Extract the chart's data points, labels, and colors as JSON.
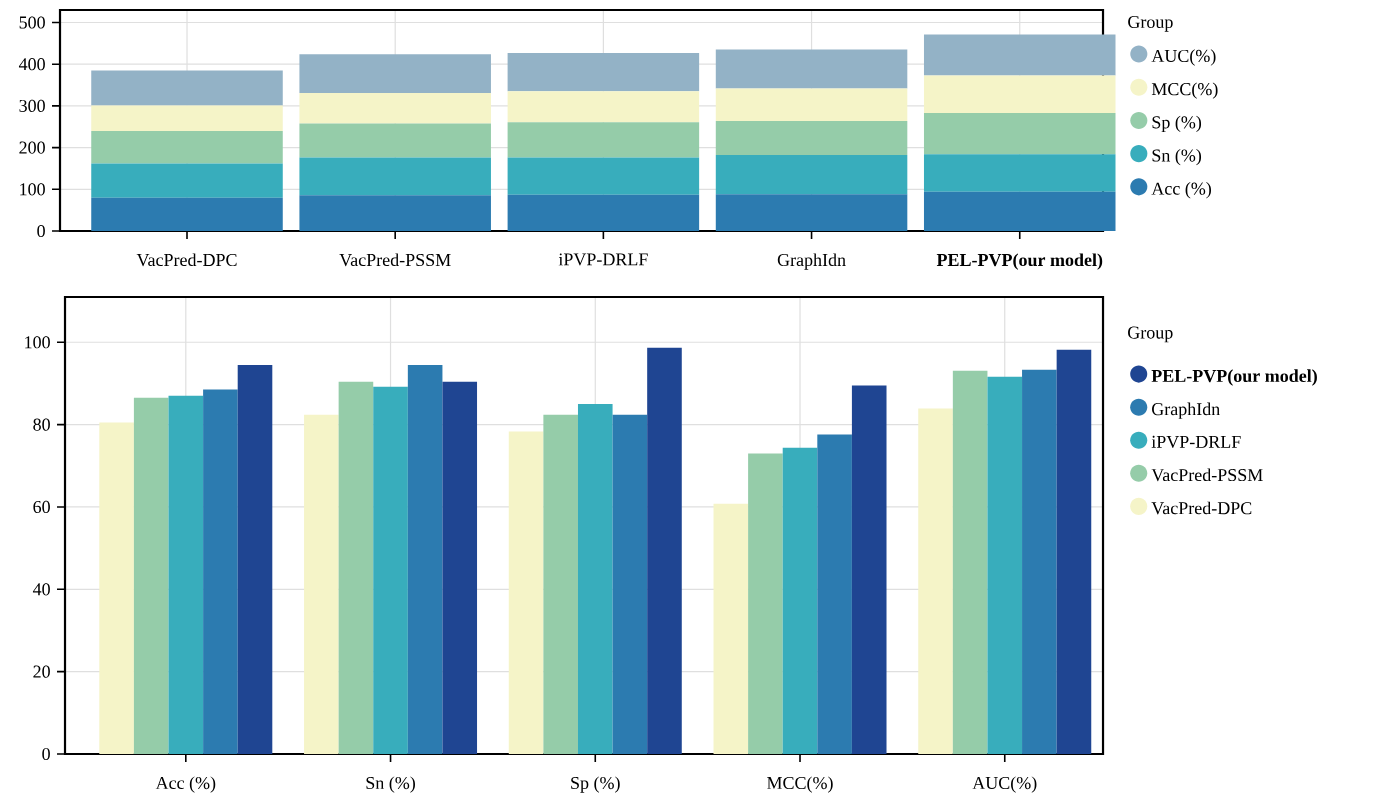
{
  "chart_data": [
    {
      "type": "bar",
      "stacked": true,
      "categories": [
        "VacPred-DPC",
        "VacPred-PSSM",
        "iPVP-DRLF",
        "GraphIdn",
        "**PEL-PVP(our model)**"
      ],
      "series": [
        {
          "name": "Acc (%)",
          "color": "#2c7bb0",
          "values": [
            80,
            86,
            87,
            88,
            94
          ]
        },
        {
          "name": "Sn (%)",
          "color": "#38adbc",
          "values": [
            82,
            90,
            89,
            94,
            90
          ]
        },
        {
          "name": "Sp (%)",
          "color": "#95cca9",
          "values": [
            78,
            82,
            85,
            82,
            99
          ]
        },
        {
          "name": "MCC(%)",
          "color": "#f5f4c8",
          "values": [
            61,
            73,
            74,
            78,
            90
          ]
        },
        {
          "name": "AUC(%)",
          "color": "#93b2c6",
          "values": [
            84,
            93,
            92,
            93,
            98
          ]
        }
      ],
      "ylim": [
        0,
        530
      ],
      "yticks": [
        0,
        100,
        200,
        300,
        400,
        500
      ],
      "grid": true,
      "legend": "right",
      "legend_title": "Group"
    },
    {
      "type": "bar",
      "categories": [
        "Acc (%)",
        "Sn (%)",
        "Sp (%)",
        "MCC(%)",
        "AUC(%)"
      ],
      "series": [
        {
          "name": "VacPred-DPC",
          "color": "#f5f4c8",
          "values": [
            80.5,
            82.4,
            78.3,
            60.8,
            83.9
          ]
        },
        {
          "name": "VacPred-PSSM",
          "color": "#95cca9",
          "values": [
            86.5,
            90.4,
            82.4,
            73.0,
            93.1
          ]
        },
        {
          "name": "iPVP-DRLF",
          "color": "#38adbc",
          "values": [
            87.0,
            89.2,
            85.0,
            74.4,
            91.6
          ]
        },
        {
          "name": "GraphIdn",
          "color": "#2c7bb0",
          "values": [
            88.5,
            94.5,
            82.4,
            77.6,
            93.3
          ]
        },
        {
          "name": "**PEL-PVP(our model)**",
          "color": "#1f4592",
          "values": [
            94.5,
            90.4,
            98.7,
            89.5,
            98.2
          ]
        }
      ],
      "ylim": [
        0,
        111
      ],
      "yticks": [
        0,
        20,
        40,
        60,
        80,
        100
      ],
      "grid": true,
      "legend": "right",
      "legend_title": "Group"
    }
  ]
}
